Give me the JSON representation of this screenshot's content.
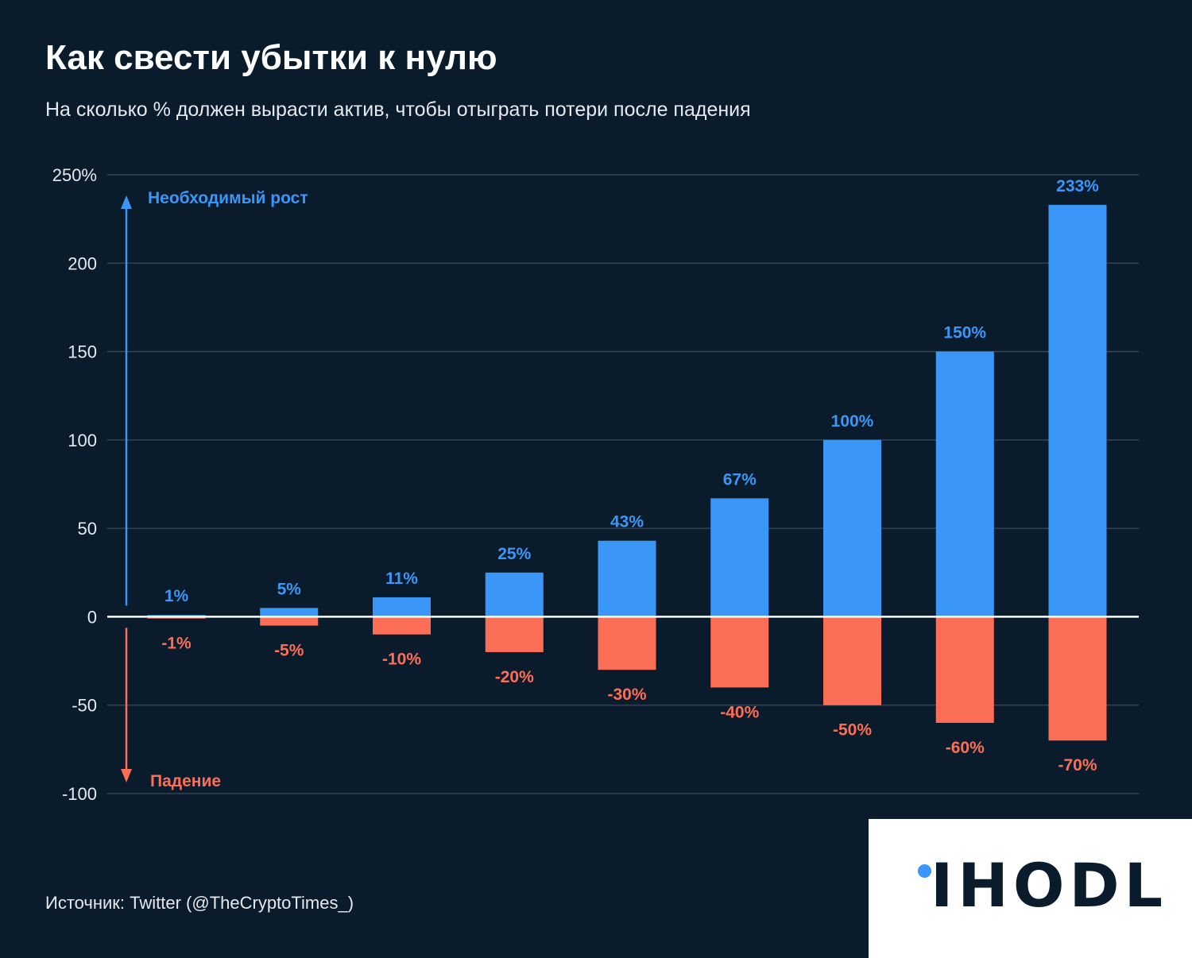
{
  "header": {
    "title": "Как свести убытки к нулю",
    "subtitle": "На сколько % должен вырасти актив, чтобы отыграть потери после падения"
  },
  "footer": {
    "source": "Источник: Twitter (@TheCryptoTimes_)",
    "logo_text": "IHODL"
  },
  "colors": {
    "background": "#0a1b2c",
    "growth": "#3a97f7",
    "drop": "#fd6e57",
    "grid": "#3c4b5a",
    "logo_dot": "#3a97f7"
  },
  "chart_data": {
    "type": "bar",
    "ylim": [
      -100,
      250
    ],
    "yticks": [
      -100,
      -50,
      0,
      50,
      100,
      150,
      200,
      250
    ],
    "ytick_labels": [
      "-100",
      "-50",
      "0",
      "50",
      "100",
      "150",
      "200",
      "250%"
    ],
    "grid": true,
    "series": [
      {
        "name": "Необходимый рост",
        "values": [
          1,
          5,
          11,
          25,
          43,
          67,
          100,
          150,
          233
        ],
        "labels": [
          "1%",
          "5%",
          "11%",
          "25%",
          "43%",
          "67%",
          "100%",
          "150%",
          "233%"
        ]
      },
      {
        "name": "Падение",
        "values": [
          -1,
          -5,
          -10,
          -20,
          -30,
          -40,
          -50,
          -60,
          -70
        ],
        "labels": [
          "-1%",
          "-5%",
          "-10%",
          "-20%",
          "-30%",
          "-40%",
          "-50%",
          "-60%",
          "-70%"
        ]
      }
    ]
  }
}
